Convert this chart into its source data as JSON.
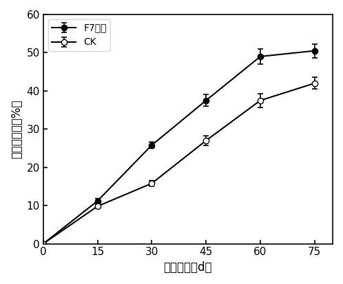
{
  "x": [
    0,
    15,
    30,
    45,
    60,
    75
  ],
  "f7_y": [
    0,
    11.2,
    25.8,
    37.5,
    49.0,
    50.5
  ],
  "f7_err": [
    0,
    0.6,
    0.8,
    1.5,
    2.0,
    1.8
  ],
  "ck_y": [
    0,
    9.8,
    15.8,
    27.0,
    37.5,
    42.0
  ],
  "ck_err": [
    0,
    0.5,
    0.7,
    1.2,
    1.8,
    1.5
  ],
  "xlabel": "取样时间（d）",
  "ylabel": "秸秵腐熟率（%）",
  "legend_f7": "F7菌剂",
  "legend_ck": "CK",
  "xlim": [
    0,
    80
  ],
  "ylim": [
    0,
    60
  ],
  "xticks": [
    0,
    15,
    30,
    45,
    60,
    75
  ],
  "yticks": [
    0,
    10,
    20,
    30,
    40,
    50,
    60
  ],
  "figsize": [
    4.98,
    4.12
  ],
  "dpi": 100
}
